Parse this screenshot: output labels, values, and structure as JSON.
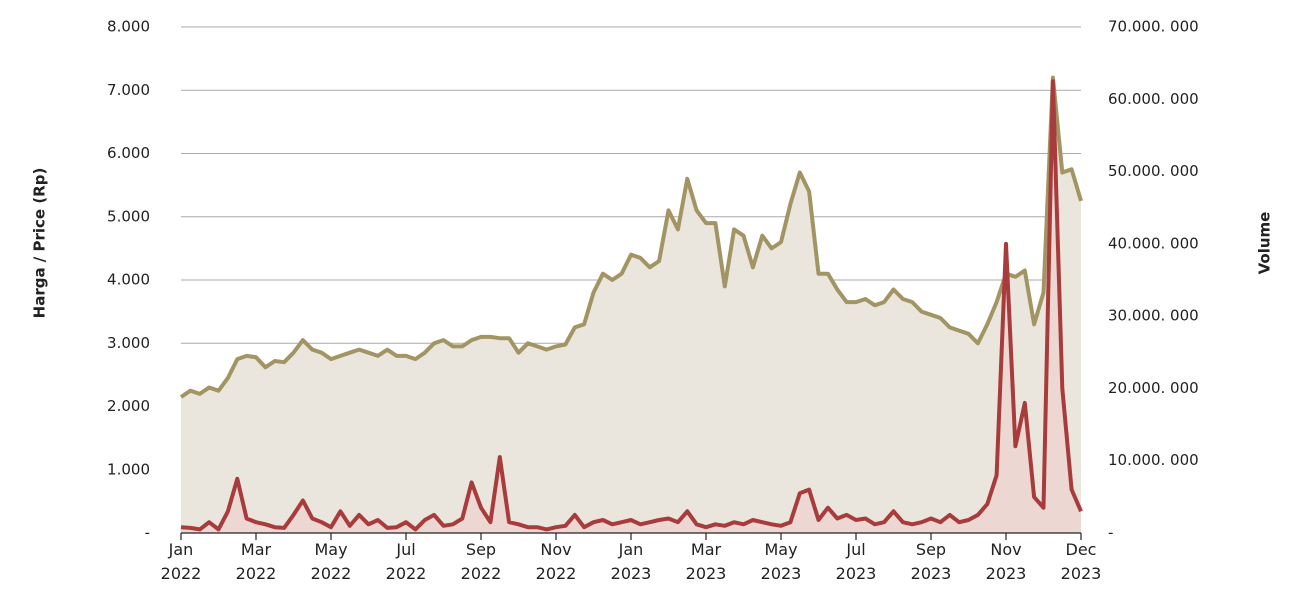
{
  "chart_data": {
    "type": "line",
    "y_label": "Harga / Price (Rp)",
    "y2_label": "Volume",
    "categories": [
      "Jan\n2022",
      null,
      null,
      null,
      null,
      null,
      null,
      null,
      "Mar\n2022",
      null,
      null,
      null,
      null,
      null,
      null,
      null,
      "May\n2022",
      null,
      null,
      null,
      null,
      null,
      null,
      null,
      "Jul\n2022",
      null,
      null,
      null,
      null,
      null,
      null,
      null,
      "Sep\n2022",
      null,
      null,
      null,
      null,
      null,
      null,
      null,
      "Nov\n2022",
      null,
      null,
      null,
      null,
      null,
      null,
      null,
      "Jan\n2023",
      null,
      null,
      null,
      null,
      null,
      null,
      null,
      "Mar\n2023",
      null,
      null,
      null,
      null,
      null,
      null,
      null,
      "May\n2023",
      null,
      null,
      null,
      null,
      null,
      null,
      null,
      "Jul\n2023",
      null,
      null,
      null,
      null,
      null,
      null,
      null,
      "Sep\n2023",
      null,
      null,
      null,
      null,
      null,
      null,
      null,
      "Nov\n2023",
      null,
      null,
      null,
      null,
      null,
      null,
      null,
      "Dec\n2023"
    ],
    "series": [
      {
        "name": "Harga / Price",
        "color": "#a39463",
        "fill": "#ebe6dd",
        "axis": "y",
        "values": [
          2150,
          2250,
          2200,
          2300,
          2250,
          2450,
          2750,
          2800,
          2780,
          2620,
          2720,
          2700,
          2850,
          3050,
          2900,
          2850,
          2750,
          2800,
          2850,
          2900,
          2850,
          2800,
          2900,
          2800,
          2800,
          2750,
          2850,
          3000,
          3050,
          2950,
          2950,
          3050,
          3100,
          3100,
          3080,
          3080,
          2850,
          3000,
          2950,
          2900,
          2950,
          2980,
          3250,
          3300,
          3800,
          4100,
          4000,
          4100,
          4400,
          4350,
          4200,
          4300,
          5100,
          4800,
          5600,
          5100,
          4900,
          4900,
          3900,
          4800,
          4700,
          4200,
          4700,
          4500,
          4600,
          5200,
          5700,
          5400,
          4100,
          4100,
          3850,
          3650,
          3650,
          3700,
          3600,
          3650,
          3850,
          3700,
          3650,
          3500,
          3450,
          3400,
          3250,
          3200,
          3150,
          3000,
          3300,
          3650,
          4100,
          4050,
          4150,
          3300,
          3800,
          7200,
          5700,
          5750,
          5250
        ]
      },
      {
        "name": "Volume",
        "color": "#a83c3c",
        "fill": "#ecd3cf",
        "axis": "y2",
        "values": [
          800000,
          700000,
          500000,
          1500000,
          500000,
          3000000,
          7500000,
          2000000,
          1500000,
          1200000,
          800000,
          700000,
          2500000,
          4500000,
          2000000,
          1500000,
          800000,
          3000000,
          1000000,
          2500000,
          1200000,
          1800000,
          700000,
          800000,
          1500000,
          500000,
          1800000,
          2500000,
          1000000,
          1200000,
          2000000,
          7000000,
          3500000,
          1500000,
          10500000,
          1500000,
          1200000,
          800000,
          800000,
          500000,
          800000,
          1000000,
          2500000,
          800000,
          1500000,
          1800000,
          1200000,
          1500000,
          1800000,
          1200000,
          1500000,
          1800000,
          2000000,
          1500000,
          3000000,
          1200000,
          800000,
          1200000,
          1000000,
          1500000,
          1200000,
          1800000,
          1500000,
          1200000,
          1000000,
          1500000,
          5500000,
          6000000,
          1800000,
          3500000,
          2000000,
          2500000,
          1800000,
          2000000,
          1200000,
          1500000,
          3000000,
          1500000,
          1200000,
          1500000,
          2000000,
          1500000,
          2500000,
          1500000,
          1800000,
          2500000,
          4000000,
          8000000,
          40000000,
          12000000,
          18000000,
          5000000,
          3500000,
          62500000,
          20000000,
          6000000,
          3000000
        ]
      }
    ],
    "ylim": [
      0,
      8000
    ],
    "yticks": [
      {
        "value": 0,
        "label": "-"
      },
      {
        "value": 1000,
        "label": "1.000"
      },
      {
        "value": 2000,
        "label": "2.000"
      },
      {
        "value": 3000,
        "label": "3.000"
      },
      {
        "value": 4000,
        "label": "4.000"
      },
      {
        "value": 5000,
        "label": "5.000"
      },
      {
        "value": 6000,
        "label": "6.000"
      },
      {
        "value": 7000,
        "label": "7.000"
      },
      {
        "value": 8000,
        "label": "8.000"
      }
    ],
    "y2lim": [
      0,
      70000000
    ],
    "y2ticks": [
      {
        "value": 0,
        "label": "-"
      },
      {
        "value": 10000000,
        "label": "10.000. 000"
      },
      {
        "value": 20000000,
        "label": "20.000. 000"
      },
      {
        "value": 30000000,
        "label": "30.000. 000"
      },
      {
        "value": 40000000,
        "label": "40.000. 000"
      },
      {
        "value": 50000000,
        "label": "50.000. 000"
      },
      {
        "value": 60000000,
        "label": "60.000. 000"
      },
      {
        "value": 70000000,
        "label": "70.000. 000"
      }
    ],
    "grid": true
  }
}
